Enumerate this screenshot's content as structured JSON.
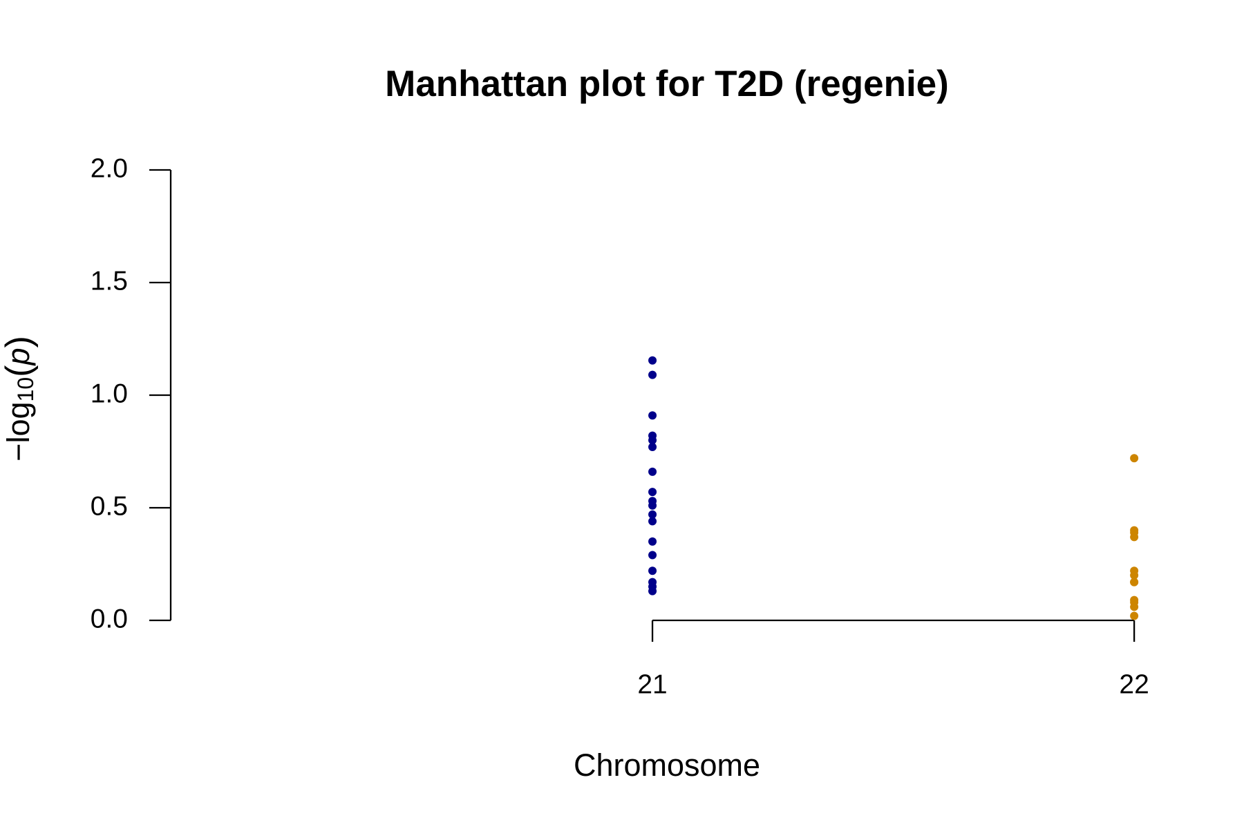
{
  "chart_data": {
    "type": "scatter",
    "title": "Manhattan plot for T2D (regenie)",
    "x_label": "Chromosome",
    "y_label_parts": [
      "−log",
      "10",
      "(",
      "p",
      ")"
    ],
    "xlim": [
      20,
      22.04
    ],
    "xticks": [
      21,
      22
    ],
    "ylim": [
      0,
      2
    ],
    "yticks": [
      {
        "value": 0,
        "label": "0.0"
      },
      {
        "value": 0.5,
        "label": "0.5"
      },
      {
        "value": 1,
        "label": "1.0"
      },
      {
        "value": 1.5,
        "label": "1.5"
      },
      {
        "value": 2,
        "label": "2.0"
      }
    ],
    "grid": false,
    "series": [
      {
        "name": "21",
        "color": "#00008b",
        "x": [
          21,
          21,
          21,
          21,
          21,
          21,
          21,
          21,
          21,
          21,
          21,
          21,
          21,
          21,
          21,
          21,
          21,
          21
        ],
        "values": [
          1.154,
          1.09,
          0.91,
          0.82,
          0.8,
          0.77,
          0.66,
          0.57,
          0.53,
          0.51,
          0.47,
          0.44,
          0.35,
          0.29,
          0.22,
          0.17,
          0.15,
          0.13
        ]
      },
      {
        "name": "22",
        "color": "#cd8500",
        "x": [
          22,
          22,
          22,
          22,
          22,
          22,
          22,
          22,
          22,
          22,
          22,
          22
        ],
        "values": [
          0.72,
          0.4,
          0.39,
          0.37,
          0.22,
          0.2,
          0.17,
          0.17,
          0.09,
          0.08,
          0.06,
          0.02
        ]
      }
    ]
  }
}
